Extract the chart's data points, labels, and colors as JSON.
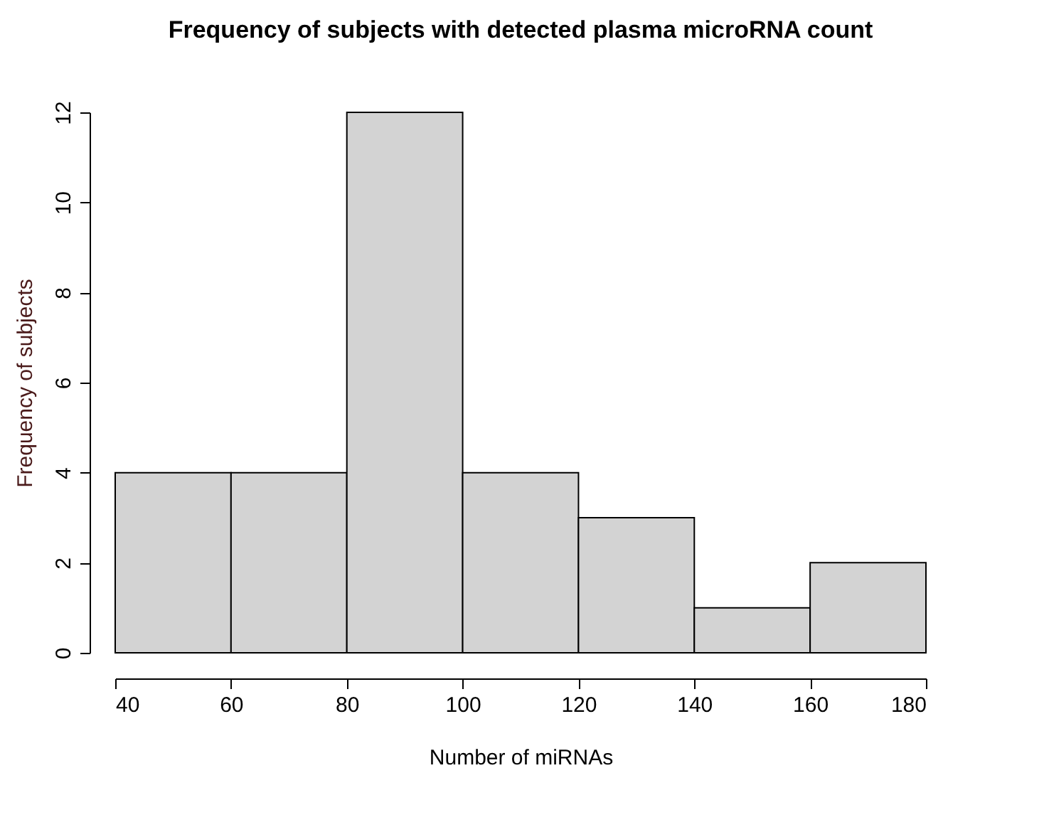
{
  "chart_data": {
    "type": "histogram",
    "title": "Frequency of subjects with detected plasma microRNA count",
    "xlabel": "Number of miRNAs",
    "ylabel": "Frequency of subjects",
    "bins": [
      40,
      60,
      80,
      100,
      120,
      140,
      160,
      180
    ],
    "values": [
      4,
      4,
      12,
      4,
      3,
      1,
      2
    ],
    "color": "#d3d3d3",
    "xlim": [
      40,
      180
    ],
    "xticks": [
      40,
      60,
      80,
      100,
      120,
      140,
      160,
      180
    ],
    "ylim": [
      0,
      12
    ],
    "yticks": [
      0,
      2,
      4,
      6,
      8,
      10,
      12
    ],
    "grid": false
  }
}
